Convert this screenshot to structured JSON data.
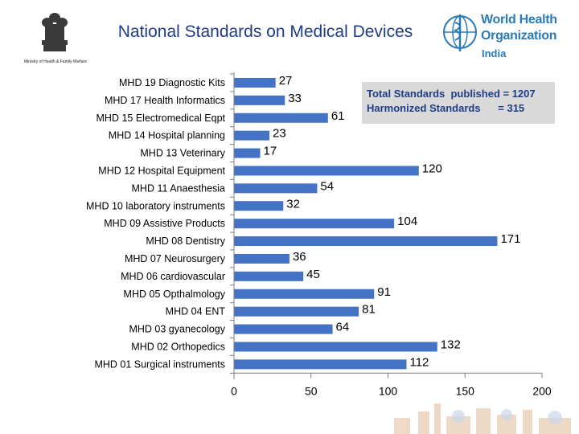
{
  "header": {
    "title": "National Standards on Medical Devices",
    "ministry_text": "Ministry of Health & Family Welfare",
    "who_line1": "World Health",
    "who_line2": "Organization",
    "who_country": "India"
  },
  "summary": {
    "total_line": "Total Standards  published = 1207",
    "harmonized_line": "Harmonized Standards      = 315"
  },
  "colors": {
    "bar": "#4472c4",
    "title": "#1f3c88",
    "who": "#2a7ab8"
  },
  "chart_data": {
    "type": "bar",
    "orientation": "horizontal",
    "title": "National Standards on Medical Devices",
    "xlabel": "",
    "ylabel": "",
    "xlim": [
      0,
      200
    ],
    "xticks": [
      0,
      50,
      100,
      150,
      200
    ],
    "categories": [
      "MHD 19 Diagnostic Kits",
      "MHD 17 Health Informatics",
      "MHD 15 Electromedical Eqpt",
      "MHD 14 Hospital planning",
      "MHD 13 Veterinary",
      "MHD 12 Hospital Equipment",
      "MHD 11 Anaesthesia",
      "MHD 10 laboratory instruments",
      "MHD 09 Assistive Products",
      "MHD 08 Dentistry",
      "MHD 07 Neurosurgery",
      "MHD 06 cardiovascular",
      "MHD 05 Opthalmology",
      "MHD 04 ENT",
      "MHD 03 gyanecology",
      "MHD 02 Orthopedics",
      "MHD 01 Surgical instruments"
    ],
    "values": [
      27,
      33,
      61,
      23,
      17,
      120,
      54,
      32,
      104,
      171,
      36,
      45,
      91,
      81,
      64,
      132,
      112
    ],
    "legend": "none",
    "grid": false
  }
}
